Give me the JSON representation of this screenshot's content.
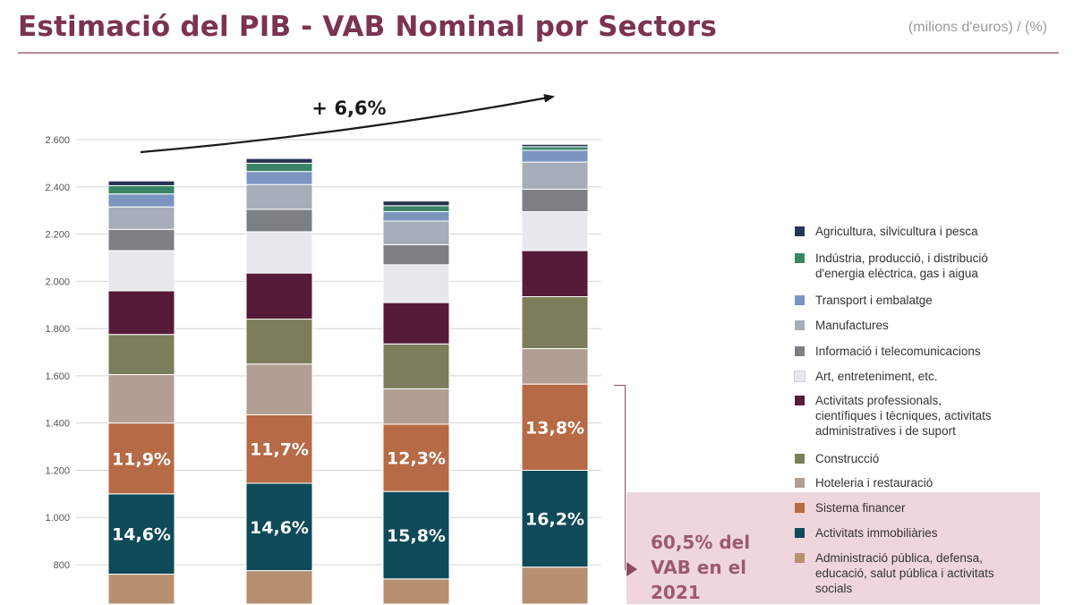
{
  "header": {
    "title": "Estimació del PIB - VAB Nominal por Sectors",
    "units": "(milions d'euros) / (%)"
  },
  "chart_data": {
    "type": "bar",
    "stacked": true,
    "ylim": [
      700,
      2650
    ],
    "yticks": [
      "800",
      "1.000",
      "1.200",
      "1.400",
      "1.600",
      "1.800",
      "2.000",
      "2.200",
      "2.400",
      "2.600"
    ],
    "ytick_values": [
      800,
      1000,
      1200,
      1400,
      1600,
      1800,
      2000,
      2200,
      2400,
      2600
    ],
    "growth_label": "+ 6,6%",
    "series": [
      {
        "name": "Administració pública, defensa, educació, salut pública i activitats socials",
        "color": "#b79072",
        "tops": [
          760,
          775,
          740,
          790
        ]
      },
      {
        "name": "Activitats immobiliàries",
        "color": "#0f4a59",
        "tops": [
          1100,
          1145,
          1110,
          1200
        ],
        "labels": [
          "14,6%",
          "14,6%",
          "15,8%",
          "16,2%"
        ]
      },
      {
        "name": "Sistema financer",
        "color": "#b66a45",
        "tops": [
          1400,
          1435,
          1395,
          1565
        ],
        "labels": [
          "11,9%",
          "11,7%",
          "12,3%",
          "13,8%"
        ]
      },
      {
        "name": "Hoteleria i restauració",
        "color": "#b39e94",
        "tops": [
          1605,
          1650,
          1545,
          1715
        ]
      },
      {
        "name": "Construcció",
        "color": "#7b7d5b",
        "tops": [
          1775,
          1840,
          1735,
          1935
        ]
      },
      {
        "name": "Activitats professionals, científiques i tècniques, activitats administratives i de suport",
        "color": "#561b38",
        "tops": [
          1960,
          2035,
          1910,
          2130
        ]
      },
      {
        "name": "Art, entreteniment, etc.",
        "color": "#e6e8ee",
        "tops": [
          2130,
          2210,
          2070,
          2295
        ]
      },
      {
        "name": "Informació i telecomunicacions",
        "color": "#7c7f84",
        "tops": [
          2220,
          2305,
          2155,
          2390
        ]
      },
      {
        "name": "Manufactures",
        "color": "#a6adb8",
        "tops": [
          2315,
          2410,
          2255,
          2505
        ]
      },
      {
        "name": "Transport i embalatge",
        "color": "#7c95c0",
        "tops": [
          2370,
          2465,
          2295,
          2555
        ]
      },
      {
        "name": "Indústria, producció, i distribució d'energia elèctrica, gas i aigua",
        "color": "#3a8566",
        "tops": [
          2405,
          2500,
          2320,
          2570
        ]
      },
      {
        "name": "Agricultura, silvicultura i pesca",
        "color": "#283452",
        "tops": [
          2425,
          2520,
          2340,
          2580
        ]
      }
    ]
  },
  "legend": {
    "items": [
      {
        "label": "Agricultura, silvicultura i pesca",
        "color": "#283452"
      },
      {
        "label": "Indústria, producció, i distribució\nd'energia elèctrica, gas i aigua",
        "color": "#3a8566"
      },
      {
        "label": "Transport i embalatge",
        "color": "#7c95c0"
      },
      {
        "label": "Manufactures",
        "color": "#a6adb8"
      },
      {
        "label": "Informació i telecomunicacions",
        "color": "#7c7f84"
      },
      {
        "label": "Art, entreteniment, etc.",
        "color": "#e6e8ee"
      },
      {
        "label": "Activitats professionals,\ncientífiques i tècniques, activitats\nadministratives i de suport",
        "color": "#561b38"
      },
      {
        "label": "Construcció",
        "color": "#7b7d5b"
      },
      {
        "label": "Hoteleria i restauració",
        "color": "#b39e94"
      },
      {
        "label": "Sistema financer",
        "color": "#b66a45"
      },
      {
        "label": "Activitats immobiliàries",
        "color": "#0f4a59"
      },
      {
        "label": "Administració pública, defensa,\neducació, salut pública i activitats\nsocials",
        "color": "#b79072"
      }
    ]
  },
  "callout": {
    "text": "60,5% del VAB en el 2021"
  }
}
